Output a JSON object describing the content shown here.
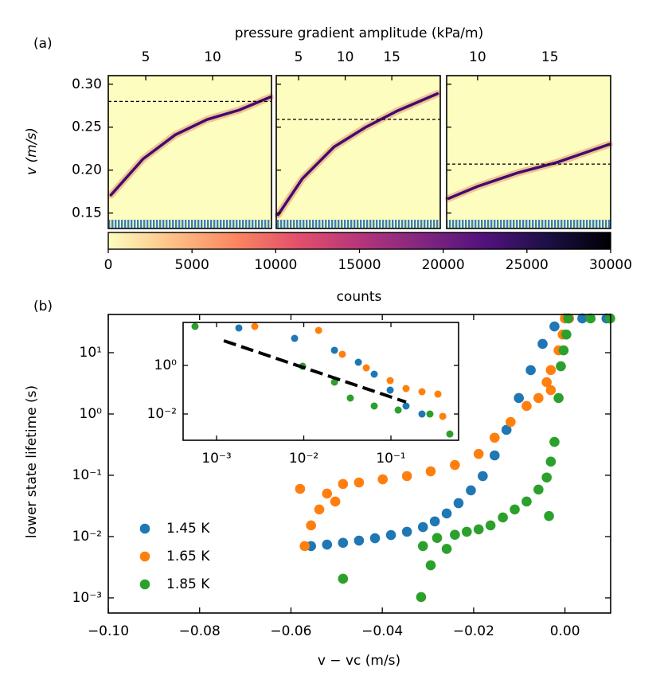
{
  "labels": {
    "a": "(a)",
    "b": "(b)"
  },
  "chart_data": [
    {
      "type": "heatmap",
      "xlabel": "pressure gradient amplitude (kPa/m)",
      "ylabel": "v (m/s)",
      "ylim": [
        0.132,
        0.31
      ],
      "yticks": [
        0.15,
        {
          "value": 0.2,
          "label": "0.20"
        },
        0.25,
        {
          "value": 0.3,
          "label": "0.30"
        }
      ],
      "background": "#fcfdbf",
      "trace_color": "#3b0f70",
      "rug_color": "#3a7fb8",
      "panels": [
        {
          "xlim": [
            2.2,
            14.4
          ],
          "xticks": [
            5,
            10
          ],
          "vc": 0.28,
          "x": [
            2.4,
            4.8,
            7.2,
            9.6,
            12.0,
            14.3
          ],
          "values": [
            0.171,
            0.213,
            0.241,
            0.259,
            0.27,
            0.285
          ]
        },
        {
          "xlim": [
            2.6,
            20.2
          ],
          "xticks": [
            5,
            10,
            15
          ],
          "vc": 0.259,
          "x": [
            2.8,
            5.4,
            8.8,
            12.2,
            15.6,
            19.9
          ],
          "values": [
            0.148,
            0.19,
            0.227,
            0.25,
            0.269,
            0.289
          ]
        },
        {
          "xlim": [
            7.86,
            19.2
          ],
          "xticks": [
            10,
            15
          ],
          "vc": 0.207,
          "x": [
            8.0,
            10.0,
            12.8,
            15.5,
            19.1
          ],
          "values": [
            0.167,
            0.181,
            0.197,
            0.209,
            0.23
          ]
        }
      ],
      "colorbar": {
        "clim": [
          0,
          30000
        ],
        "ticks": [
          0,
          5000,
          10000,
          15000,
          20000,
          25000,
          30000
        ],
        "label": "counts",
        "colors": [
          "#fcfdbf",
          "#fec287",
          "#fb8861",
          "#e3506b",
          "#b5367a",
          "#822681",
          "#51127c",
          "#1c1044",
          "#000004"
        ]
      }
    },
    {
      "type": "scatter",
      "xlabel": "v − vc (m/s)",
      "ylabel": "lower state lifetime (s)",
      "xlim": [
        -0.1,
        0.01
      ],
      "xticks": [
        {
          "value": -0.1,
          "label": "−0.10"
        },
        {
          "value": -0.08,
          "label": "−0.08"
        },
        {
          "value": -0.06,
          "label": "−0.06"
        },
        {
          "value": -0.04,
          "label": "−0.04"
        },
        {
          "value": -0.02,
          "label": "−0.02"
        },
        {
          "value": 0,
          "label": "0.00"
        }
      ],
      "yscale": "log",
      "ylim": [
        0.000566,
        42
      ],
      "yticks": [
        {
          "value": 0.001,
          "label": "10⁻³"
        },
        {
          "value": 0.01,
          "label": "10⁻²"
        },
        {
          "value": 0.1,
          "label": "10⁻¹"
        },
        {
          "value": 1,
          "label": "10⁰"
        },
        {
          "value": 10,
          "label": "10¹"
        }
      ],
      "legend": "lower left",
      "series": [
        {
          "name": "1.45 K",
          "color": "#1f77b4",
          "x": [
            -0.0556,
            -0.0521,
            -0.0486,
            -0.0451,
            -0.0416,
            -0.0381,
            -0.0346,
            -0.0311,
            -0.0285,
            -0.0259,
            -0.0233,
            -0.0206,
            -0.018,
            -0.0154,
            -0.0128,
            -0.0101,
            -0.0075,
            -0.0049,
            -0.0023,
            0.0,
            0.0038,
            0.0091
          ],
          "values": [
            0.007,
            0.0074,
            0.0079,
            0.0086,
            0.0094,
            0.0106,
            0.012,
            0.0143,
            0.0177,
            0.0238,
            0.0351,
            0.0567,
            0.097,
            0.211,
            0.55,
            1.82,
            5.18,
            13.9,
            26.8,
            36.2,
            36.2,
            36.2
          ]
        },
        {
          "name": "1.65 K",
          "color": "#ff7f0e",
          "x": [
            -0.057,
            -0.0556,
            -0.0538,
            -0.0521,
            -0.0503,
            -0.058,
            -0.0486,
            -0.0451,
            -0.0399,
            -0.0346,
            -0.0294,
            -0.0241,
            -0.0189,
            -0.0154,
            -0.0119,
            -0.0084,
            -0.0058,
            -0.004,
            -0.0031,
            -0.0031,
            -0.0014,
            -0.0005,
            0.0,
            0.0009
          ],
          "values": [
            0.007,
            0.0152,
            0.0277,
            0.0503,
            0.0373,
            0.0601,
            0.072,
            0.0763,
            0.0858,
            0.097,
            0.116,
            0.147,
            0.223,
            0.41,
            0.74,
            1.35,
            1.82,
            3.3,
            5.2,
            2.45,
            10.9,
            19.8,
            36.2,
            36.2
          ]
        },
        {
          "name": "1.85 K",
          "color": "#2ca02c",
          "x": [
            -0.0486,
            -0.0315,
            -0.0311,
            -0.0294,
            -0.028,
            -0.0259,
            -0.0241,
            -0.0215,
            -0.0189,
            -0.0163,
            -0.0136,
            -0.011,
            -0.0084,
            -0.0058,
            -0.004,
            -0.0035,
            -0.0031,
            -0.0023,
            -0.0014,
            -0.0009,
            -0.0003,
            0.0003,
            0.0007,
            0.0056,
            0.0099
          ],
          "values": [
            0.00205,
            0.00103,
            0.007,
            0.0034,
            0.0095,
            0.0063,
            0.0107,
            0.012,
            0.0131,
            0.0152,
            0.0205,
            0.0277,
            0.0373,
            0.0585,
            0.092,
            0.0216,
            0.167,
            0.35,
            1.82,
            6.0,
            10.9,
            19.8,
            36.2,
            36.2,
            36.2
          ]
        }
      ],
      "inset": {
        "xscale": "log",
        "yscale": "log",
        "xlim": [
          0.000413,
          0.597
        ],
        "ylim": [
          0.00083,
          58.9
        ],
        "xticks": [
          {
            "value": 0.001,
            "label": "10⁻³"
          },
          {
            "value": 0.01,
            "label": "10⁻²"
          },
          {
            "value": 0.1,
            "label": "10⁻¹"
          }
        ],
        "yticks": [
          {
            "value": 0.01,
            "label": "10⁻²"
          },
          {
            "value": 1,
            "label": "10⁰"
          }
        ],
        "series": [
          {
            "color": "#1f77b4",
            "x": [
              0.0018,
              0.00785,
              0.0225,
              0.0423,
              0.0643,
              0.098,
              0.149,
              0.227
            ],
            "values": [
              34.8,
              13.0,
              4.2,
              1.35,
              0.436,
              0.096,
              0.0213,
              0.01
            ]
          },
          {
            "color": "#ff7f0e",
            "x": [
              0.00274,
              0.0148,
              0.0277,
              0.0521,
              0.098,
              0.149,
              0.227,
              0.346,
              0.393
            ],
            "values": [
              40.4,
              27.7,
              2.88,
              0.797,
              0.238,
              0.112,
              0.0828,
              0.066,
              0.008
            ]
          },
          {
            "color": "#2ca02c",
            "x": [
              0.000566,
              0.0097,
              0.0225,
              0.0342,
              0.0643,
              0.121,
              0.28,
              0.474
            ],
            "values": [
              40.4,
              0.927,
              0.205,
              0.0453,
              0.0213,
              0.0146,
              0.01,
              0.0015
            ]
          }
        ],
        "fit": {
          "color": "#000000",
          "x": [
            0.00121,
            0.149
          ],
          "values": [
            10.4,
            0.031
          ]
        }
      }
    }
  ]
}
